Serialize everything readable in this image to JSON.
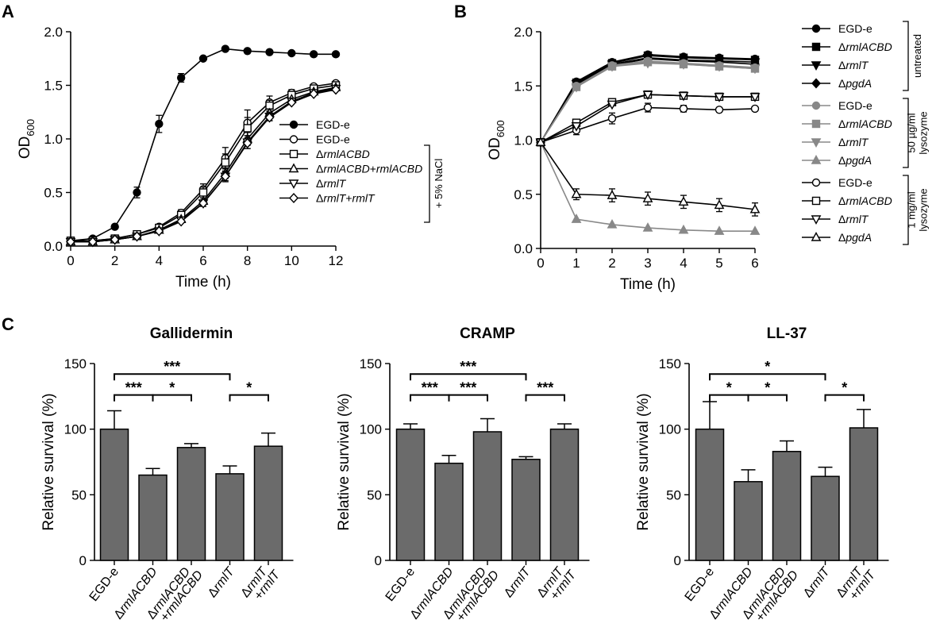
{
  "panels": {
    "A": {
      "letter": "A",
      "chart_data": {
        "type": "line",
        "xlabel": "Time (h)",
        "ylabel": "OD",
        "ylabel_sub": "600",
        "xlim": [
          0,
          12
        ],
        "ylim": [
          0,
          2.0
        ],
        "xticks": [
          "0",
          "2",
          "4",
          "6",
          "8",
          "10",
          "12"
        ],
        "yticks": [
          "0.0",
          "0.5",
          "1.0",
          "1.5",
          "2.0"
        ],
        "bracket_label": "+ 5% NaCl",
        "series": [
          {
            "name": "EGD-e",
            "marker": "circle-filled",
            "x": [
              0,
              1,
              2,
              3,
              4,
              5,
              6,
              7,
              8,
              9,
              10,
              11,
              12
            ],
            "y": [
              0.05,
              0.07,
              0.18,
              0.5,
              1.14,
              1.57,
              1.75,
              1.84,
              1.82,
              1.81,
              1.8,
              1.79,
              1.79
            ],
            "err": [
              0,
              0,
              0,
              0.05,
              0.08,
              0.04,
              0,
              0,
              0,
              0,
              0,
              0,
              0
            ]
          },
          {
            "name": "EGD-e",
            "marker": "circle-open",
            "x": [
              0,
              1,
              2,
              3,
              4,
              5,
              6,
              7,
              8,
              9,
              10,
              11,
              12
            ],
            "y": [
              0.05,
              0.05,
              0.07,
              0.11,
              0.18,
              0.31,
              0.53,
              0.82,
              1.15,
              1.34,
              1.43,
              1.49,
              1.52
            ],
            "err": [
              0,
              0,
              0,
              0,
              0,
              0.03,
              0.05,
              0.1,
              0.12,
              0.06,
              0.03,
              0,
              0
            ]
          },
          {
            "name": "ΔrmlACBD",
            "italic": "rmlACBD",
            "marker": "square-open",
            "x": [
              0,
              1,
              2,
              3,
              4,
              5,
              6,
              7,
              8,
              9,
              10,
              11,
              12
            ],
            "y": [
              0.05,
              0.05,
              0.07,
              0.11,
              0.17,
              0.29,
              0.5,
              0.78,
              1.1,
              1.31,
              1.41,
              1.47,
              1.5
            ],
            "err": [
              0,
              0,
              0,
              0,
              0,
              0.03,
              0.05,
              0.08,
              0.1,
              0.05,
              0.03,
              0,
              0
            ]
          },
          {
            "name": "ΔrmlACBD+rmlACBD",
            "italic": "rmlACBD+rmlACBD",
            "marker": "triangle-up-open",
            "x": [
              0,
              1,
              2,
              3,
              4,
              5,
              6,
              7,
              8,
              9,
              10,
              11,
              12
            ],
            "y": [
              0.04,
              0.04,
              0.06,
              0.09,
              0.15,
              0.25,
              0.42,
              0.68,
              1.0,
              1.24,
              1.37,
              1.44,
              1.48
            ],
            "err": [
              0,
              0,
              0,
              0,
              0,
              0,
              0.03,
              0.05,
              0.06,
              0.04,
              0,
              0,
              0
            ]
          },
          {
            "name": "ΔrmlT",
            "italic": "rmlT",
            "marker": "triangle-down-open",
            "x": [
              0,
              1,
              2,
              3,
              4,
              5,
              6,
              7,
              8,
              9,
              10,
              11,
              12
            ],
            "y": [
              0.04,
              0.04,
              0.06,
              0.09,
              0.14,
              0.24,
              0.4,
              0.65,
              0.97,
              1.21,
              1.35,
              1.43,
              1.47
            ],
            "err": [
              0,
              0,
              0,
              0,
              0,
              0,
              0.03,
              0.05,
              0.06,
              0.04,
              0,
              0,
              0
            ]
          },
          {
            "name": "ΔrmlT+rmlT",
            "italic": "rmlT+rmlT",
            "marker": "diamond-open",
            "x": [
              0,
              1,
              2,
              3,
              4,
              5,
              6,
              7,
              8,
              9,
              10,
              11,
              12
            ],
            "y": [
              0.04,
              0.04,
              0.06,
              0.09,
              0.14,
              0.23,
              0.4,
              0.65,
              0.96,
              1.2,
              1.34,
              1.42,
              1.46
            ],
            "err": [
              0,
              0,
              0,
              0,
              0,
              0,
              0,
              0.04,
              0.05,
              0.03,
              0,
              0,
              0
            ]
          }
        ]
      }
    },
    "B": {
      "letter": "B",
      "chart_data": {
        "type": "line",
        "xlabel": "Time (h)",
        "ylabel": "OD",
        "ylabel_sub": "600",
        "xlim": [
          0,
          6
        ],
        "ylim": [
          0,
          2.0
        ],
        "xticks": [
          "0",
          "1",
          "2",
          "3",
          "4",
          "5",
          "6"
        ],
        "yticks": [
          "0.0",
          "0.5",
          "1.0",
          "1.5",
          "2.0"
        ],
        "groups": [
          {
            "label_lines": [
              "untreated"
            ],
            "entries": [
              {
                "name": "EGD-e",
                "marker": "circle-filled",
                "color": "#000000",
                "x": [
                  0,
                  1,
                  2,
                  3,
                  4,
                  5,
                  6
                ],
                "y": [
                  0.98,
                  1.54,
                  1.72,
                  1.79,
                  1.77,
                  1.76,
                  1.75
                ]
              },
              {
                "name": "ΔrmlACBD",
                "italic": "rmlACBD",
                "marker": "square-filled",
                "color": "#000000",
                "x": [
                  0,
                  1,
                  2,
                  3,
                  4,
                  5,
                  6
                ],
                "y": [
                  0.98,
                  1.53,
                  1.71,
                  1.78,
                  1.76,
                  1.75,
                  1.74
                ]
              },
              {
                "name": "ΔrmlT",
                "italic": "rmlT",
                "marker": "triangle-down-filled",
                "color": "#000000",
                "x": [
                  0,
                  1,
                  2,
                  3,
                  4,
                  5,
                  6
                ],
                "y": [
                  0.98,
                  1.52,
                  1.7,
                  1.76,
                  1.74,
                  1.73,
                  1.72
                ]
              },
              {
                "name": "ΔpgdA",
                "italic": "pgdA",
                "marker": "diamond-filled",
                "color": "#000000",
                "x": [
                  0,
                  1,
                  2,
                  3,
                  4,
                  5,
                  6
                ],
                "y": [
                  0.98,
                  1.51,
                  1.69,
                  1.75,
                  1.73,
                  1.72,
                  1.7
                ]
              }
            ]
          },
          {
            "label_lines": [
              "50 µg/ml",
              "lysozyme"
            ],
            "entries": [
              {
                "name": "EGD-e",
                "marker": "circle-filled",
                "color": "#888888",
                "x": [
                  0,
                  1,
                  2,
                  3,
                  4,
                  5,
                  6
                ],
                "y": [
                  0.98,
                  1.5,
                  1.69,
                  1.73,
                  1.71,
                  1.69,
                  1.67
                ]
              },
              {
                "name": "ΔrmlACBD",
                "italic": "rmlACBD",
                "marker": "square-filled",
                "color": "#888888",
                "x": [
                  0,
                  1,
                  2,
                  3,
                  4,
                  5,
                  6
                ],
                "y": [
                  0.98,
                  1.49,
                  1.68,
                  1.72,
                  1.7,
                  1.68,
                  1.66
                ]
              },
              {
                "name": "ΔrmlT",
                "italic": "rmlT",
                "marker": "triangle-down-filled",
                "color": "#888888",
                "x": [
                  0,
                  1,
                  2,
                  3,
                  4,
                  5,
                  6
                ],
                "y": [
                  0.98,
                  1.49,
                  1.68,
                  1.71,
                  1.7,
                  1.68,
                  1.66
                ]
              },
              {
                "name": "ΔpgdA",
                "italic": "pgdA",
                "marker": "triangle-up-filled",
                "color": "#888888",
                "x": [
                  0,
                  1,
                  2,
                  3,
                  4,
                  5,
                  6
                ],
                "y": [
                  0.98,
                  0.27,
                  0.22,
                  0.19,
                  0.17,
                  0.16,
                  0.16
                ]
              }
            ]
          },
          {
            "label_lines": [
              "1 mg/ml",
              "lysozyme"
            ],
            "entries": [
              {
                "name": "EGD-e",
                "marker": "circle-open",
                "color": "#000000",
                "x": [
                  0,
                  1,
                  2,
                  3,
                  4,
                  5,
                  6
                ],
                "y": [
                  0.98,
                  1.09,
                  1.2,
                  1.3,
                  1.29,
                  1.28,
                  1.29
                ],
                "err": [
                  0,
                  0.04,
                  0.05,
                  0.04,
                  0.03,
                  0.02,
                  0.02
                ]
              },
              {
                "name": "ΔrmlACBD",
                "italic": "rmlACBD",
                "marker": "square-open",
                "color": "#000000",
                "x": [
                  0,
                  1,
                  2,
                  3,
                  4,
                  5,
                  6
                ],
                "y": [
                  0.98,
                  1.16,
                  1.35,
                  1.42,
                  1.41,
                  1.4,
                  1.4
                ],
                "err": [
                  0,
                  0.03,
                  0.03,
                  0.02,
                  0.02,
                  0.02,
                  0.03
                ]
              },
              {
                "name": "ΔrmlT",
                "italic": "rmlT",
                "marker": "triangle-down-open",
                "color": "#000000",
                "x": [
                  0,
                  1,
                  2,
                  3,
                  4,
                  5,
                  6
                ],
                "y": [
                  0.98,
                  1.13,
                  1.33,
                  1.42,
                  1.41,
                  1.4,
                  1.4
                ]
              },
              {
                "name": "ΔpgdA",
                "italic": "pgdA",
                "marker": "triangle-up-open",
                "color": "#000000",
                "x": [
                  0,
                  1,
                  2,
                  3,
                  4,
                  5,
                  6
                ],
                "y": [
                  0.98,
                  0.5,
                  0.49,
                  0.46,
                  0.43,
                  0.4,
                  0.36
                ],
                "err": [
                  0,
                  0.05,
                  0.06,
                  0.06,
                  0.06,
                  0.06,
                  0.06
                ]
              }
            ]
          }
        ]
      }
    },
    "C": {
      "letter": "C",
      "categories": [
        "EGD-e",
        "ΔrmlACBD",
        "ΔrmlACBD +rmlACBD",
        "ΔrmlT",
        "ΔrmlT +rmlT"
      ],
      "category_lines": [
        [
          {
            "t": "EGD-e",
            "i": false
          }
        ],
        [
          {
            "t": "Δ",
            "i": false,
            "rest": "rmlACBD"
          }
        ],
        [
          {
            "t": "Δ",
            "i": false,
            "rest": "rmlACBD"
          },
          {
            "t": "+",
            "i": false,
            "rest": "rmlACBD"
          }
        ],
        [
          {
            "t": "Δ",
            "i": false,
            "rest": "rmlT"
          }
        ],
        [
          {
            "t": "Δ",
            "i": false,
            "rest": "rmlT"
          },
          {
            "t": "+",
            "i": false,
            "rest": "rmlT"
          }
        ]
      ],
      "ylabel": "Relative survival (%)",
      "yticks": [
        "0",
        "50",
        "100",
        "150"
      ],
      "ylim": [
        0,
        150
      ],
      "chart_data": [
        {
          "type": "bar",
          "title": "Gallidermin",
          "categories": [
            "EGD-e",
            "ΔrmlACBD",
            "ΔrmlACBD+rmlACBD",
            "ΔrmlT",
            "ΔrmlT+rmlT"
          ],
          "values": [
            100,
            65,
            86,
            66,
            87
          ],
          "errors": [
            14,
            5,
            3,
            6,
            10
          ],
          "significance": [
            {
              "from": 0,
              "to": 3,
              "label": "***",
              "y": 142
            },
            {
              "from": 0,
              "to": 1,
              "label": "***",
              "y": 126
            },
            {
              "from": 1,
              "to": 2,
              "label": "*",
              "y": 126
            },
            {
              "from": 3,
              "to": 4,
              "label": "*",
              "y": 126
            }
          ]
        },
        {
          "type": "bar",
          "title": "CRAMP",
          "categories": [
            "EGD-e",
            "ΔrmlACBD",
            "ΔrmlACBD+rmlACBD",
            "ΔrmlT",
            "ΔrmlT+rmlT"
          ],
          "values": [
            100,
            74,
            98,
            77,
            100
          ],
          "errors": [
            4,
            6,
            10,
            2,
            4
          ],
          "significance": [
            {
              "from": 0,
              "to": 3,
              "label": "***",
              "y": 142
            },
            {
              "from": 0,
              "to": 1,
              "label": "***",
              "y": 126
            },
            {
              "from": 1,
              "to": 2,
              "label": "***",
              "y": 126
            },
            {
              "from": 3,
              "to": 4,
              "label": "***",
              "y": 126
            }
          ]
        },
        {
          "type": "bar",
          "title": "LL-37",
          "categories": [
            "EGD-e",
            "ΔrmlACBD",
            "ΔrmlACBD+rmlACBD",
            "ΔrmlT",
            "ΔrmlT+rmlT"
          ],
          "values": [
            100,
            60,
            83,
            64,
            101
          ],
          "errors": [
            21,
            9,
            8,
            7,
            14
          ],
          "significance": [
            {
              "from": 0,
              "to": 3,
              "label": "*",
              "y": 142
            },
            {
              "from": 0,
              "to": 1,
              "label": "*",
              "y": 126
            },
            {
              "from": 1,
              "to": 2,
              "label": "*",
              "y": 126
            },
            {
              "from": 3,
              "to": 4,
              "label": "*",
              "y": 126
            }
          ]
        }
      ]
    }
  },
  "colors": {
    "bar_fill": "#6b6b6b",
    "gray_series": "#888888",
    "black": "#000000"
  }
}
